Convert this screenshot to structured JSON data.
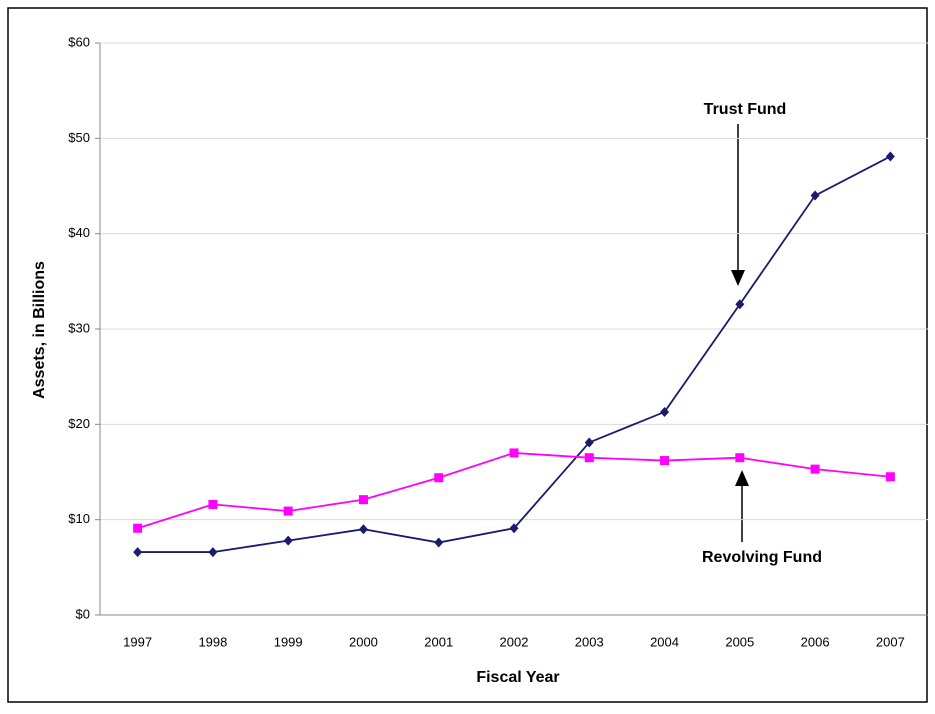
{
  "chart_data": {
    "type": "line",
    "y_label": "Assets, in Billions",
    "x_label": "Fiscal Year",
    "categories": [
      "1997",
      "1998",
      "1999",
      "2000",
      "2001",
      "2002",
      "2003",
      "2004",
      "2005",
      "2006",
      "2007"
    ],
    "series": [
      {
        "name": "Trust Fund",
        "color": "#1a1a6e",
        "values": [
          6.6,
          6.6,
          7.8,
          9.0,
          7.6,
          9.1,
          18.1,
          21.3,
          32.6,
          44.0,
          48.1
        ]
      },
      {
        "name": "Revolving Fund",
        "color": "#ff00ff",
        "values": [
          9.1,
          11.6,
          10.9,
          12.1,
          14.4,
          17.0,
          16.5,
          16.2,
          16.5,
          15.3,
          14.5
        ]
      }
    ],
    "ylim": [
      0,
      60
    ],
    "yticks": [
      {
        "value": 0,
        "label": "$0"
      },
      {
        "value": 10,
        "label": "$10"
      },
      {
        "value": 20,
        "label": "$20"
      },
      {
        "value": 30,
        "label": "$30"
      },
      {
        "value": 40,
        "label": "$40"
      },
      {
        "value": 50,
        "label": "$50"
      },
      {
        "value": 60,
        "label": "$60"
      }
    ],
    "grid": true
  }
}
